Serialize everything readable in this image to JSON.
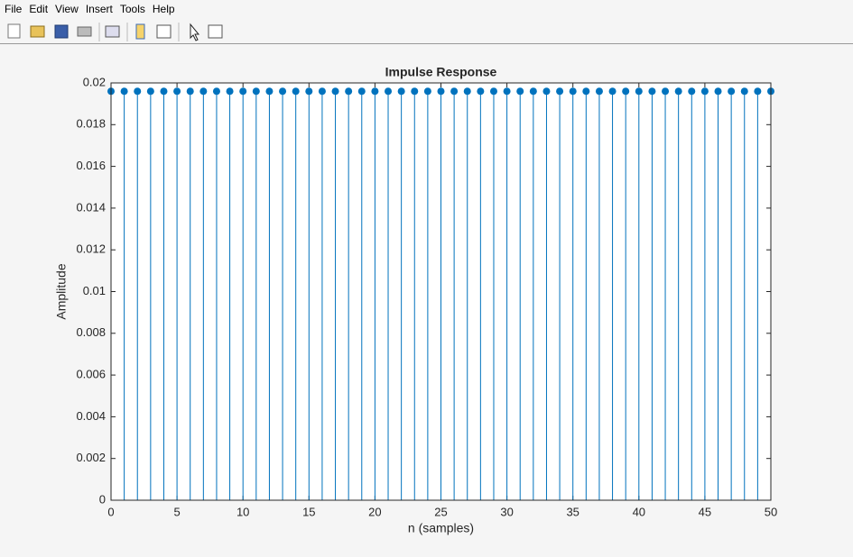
{
  "window": {
    "menu": [
      "File",
      "Edit",
      "View",
      "Insert",
      "Tools",
      "Help"
    ]
  },
  "chart_data": {
    "type": "stem",
    "title": "Impulse Response",
    "xlabel": "n (samples)",
    "ylabel": "Amplitude",
    "x": [
      0,
      1,
      2,
      3,
      4,
      5,
      6,
      7,
      8,
      9,
      10,
      11,
      12,
      13,
      14,
      15,
      16,
      17,
      18,
      19,
      20,
      21,
      22,
      23,
      24,
      25,
      26,
      27,
      28,
      29,
      30,
      31,
      32,
      33,
      34,
      35,
      36,
      37,
      38,
      39,
      40,
      41,
      42,
      43,
      44,
      45,
      46,
      47,
      48,
      49,
      50
    ],
    "values": [
      0.0196,
      0.0196,
      0.0196,
      0.0196,
      0.0196,
      0.0196,
      0.0196,
      0.0196,
      0.0196,
      0.0196,
      0.0196,
      0.0196,
      0.0196,
      0.0196,
      0.0196,
      0.0196,
      0.0196,
      0.0196,
      0.0196,
      0.0196,
      0.0196,
      0.0196,
      0.0196,
      0.0196,
      0.0196,
      0.0196,
      0.0196,
      0.0196,
      0.0196,
      0.0196,
      0.0196,
      0.0196,
      0.0196,
      0.0196,
      0.0196,
      0.0196,
      0.0196,
      0.0196,
      0.0196,
      0.0196,
      0.0196,
      0.0196,
      0.0196,
      0.0196,
      0.0196,
      0.0196,
      0.0196,
      0.0196,
      0.0196,
      0.0196,
      0.0196
    ],
    "color": "#0072bd",
    "xlim": [
      0,
      50
    ],
    "xticks": [
      0,
      5,
      10,
      15,
      20,
      25,
      30,
      35,
      40,
      45,
      50
    ],
    "ylim": [
      0,
      0.02
    ],
    "yticks": [
      0,
      0.002,
      0.004,
      0.006,
      0.008,
      0.01,
      0.012,
      0.014,
      0.016,
      0.018,
      0.02
    ],
    "grid": false
  }
}
